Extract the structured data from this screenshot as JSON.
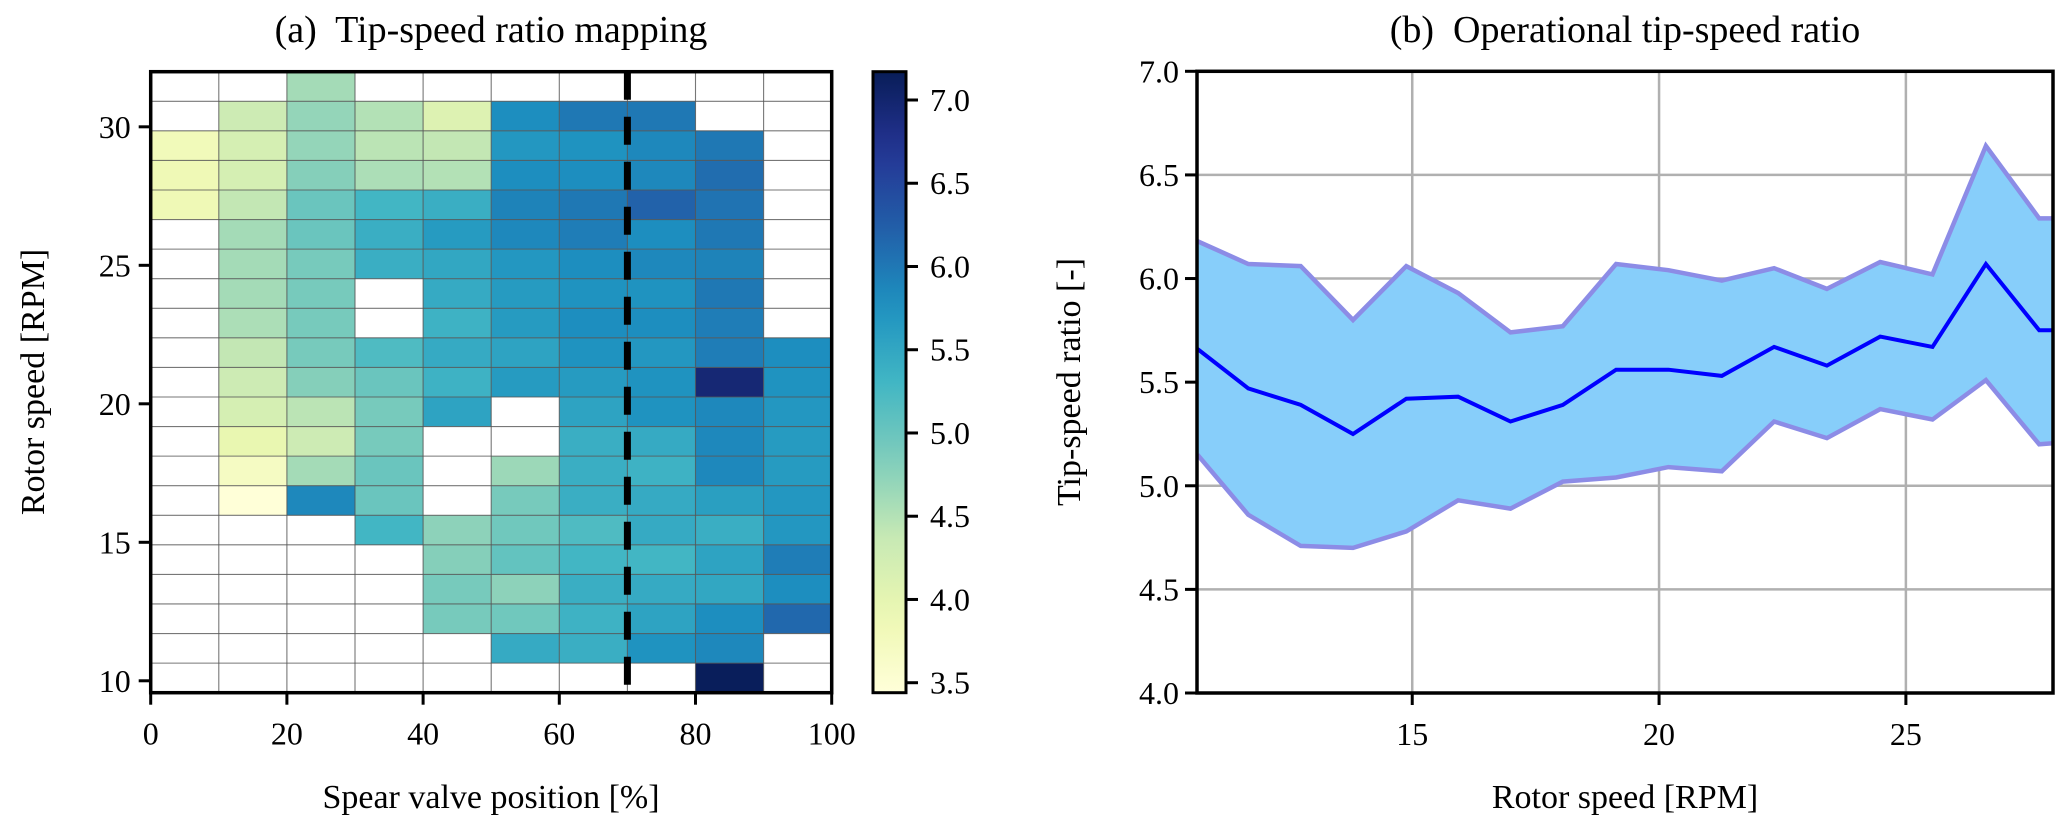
{
  "chart_data": [
    {
      "type": "heatmap",
      "title": "(a)  Tip-speed ratio mapping",
      "xlabel": "Spear valve position [%]",
      "ylabel": "Rotor speed [RPM]",
      "xlim": [
        0,
        100
      ],
      "ylim": [
        9.57,
        31.99
      ],
      "xticks": [
        0,
        20,
        40,
        60,
        80,
        100
      ],
      "yticks": [
        10,
        15,
        20,
        25,
        30
      ],
      "x_bin_edges": [
        0,
        10,
        20,
        30,
        40,
        50,
        60,
        70,
        80,
        90,
        100
      ],
      "y_bins": {
        "start": 9.57,
        "width": 1.0676,
        "count": 21
      },
      "colormap": "YlGnBu",
      "colorbar": {
        "range": [
          3.44,
          7.17
        ],
        "ticks": [
          3.5,
          4.0,
          4.5,
          5.0,
          5.5,
          6.0,
          6.5,
          7.0
        ],
        "tick_labels": [
          "3.5",
          "4.0",
          "4.5",
          "5.0",
          "5.5",
          "6.0",
          "6.5",
          "7.0"
        ]
      },
      "reference_line": {
        "x": 70,
        "style": "dashed",
        "color": "#000000"
      },
      "grid": true,
      "rows_top_to_bottom": [
        [
          null,
          null,
          4.6,
          null,
          null,
          null,
          null,
          null,
          null,
          null
        ],
        [
          null,
          4.3,
          4.7,
          4.5,
          4.1,
          5.8,
          6.0,
          6.0,
          null,
          null
        ],
        [
          3.8,
          4.2,
          4.7,
          4.45,
          4.4,
          5.7,
          5.75,
          5.85,
          6.0,
          null
        ],
        [
          3.85,
          4.2,
          4.8,
          4.55,
          4.5,
          5.8,
          5.8,
          5.85,
          6.1,
          null
        ],
        [
          3.85,
          4.4,
          5.0,
          5.3,
          5.4,
          5.9,
          6.0,
          6.2,
          6.05,
          null
        ],
        [
          null,
          4.6,
          5.0,
          5.4,
          5.65,
          5.85,
          5.95,
          5.8,
          6.0,
          null
        ],
        [
          null,
          4.6,
          4.9,
          5.4,
          5.5,
          5.7,
          5.8,
          5.85,
          5.9,
          null
        ],
        [
          null,
          4.6,
          4.9,
          null,
          5.45,
          5.65,
          5.75,
          5.75,
          6.0,
          null
        ],
        [
          null,
          4.55,
          4.9,
          null,
          5.35,
          5.65,
          5.8,
          5.8,
          5.95,
          null
        ],
        [
          null,
          4.4,
          4.9,
          5.2,
          5.45,
          5.55,
          5.75,
          5.7,
          5.95,
          5.8
        ],
        [
          null,
          4.3,
          4.8,
          5.0,
          5.35,
          5.65,
          5.65,
          5.75,
          6.95,
          5.75
        ],
        [
          null,
          4.2,
          4.45,
          4.9,
          5.55,
          null,
          5.55,
          5.75,
          5.85,
          5.7
        ],
        [
          null,
          3.95,
          4.3,
          4.9,
          null,
          null,
          5.4,
          5.45,
          5.85,
          5.65
        ],
        [
          null,
          3.7,
          4.6,
          5.0,
          null,
          4.65,
          5.4,
          5.35,
          5.85,
          5.65
        ],
        [
          null,
          3.45,
          5.85,
          5.0,
          null,
          4.9,
          5.4,
          5.45,
          5.6,
          5.7
        ],
        [
          null,
          null,
          null,
          5.3,
          4.75,
          4.95,
          5.2,
          5.45,
          5.4,
          5.7
        ],
        [
          null,
          null,
          null,
          null,
          4.8,
          5.05,
          5.3,
          5.3,
          5.55,
          5.95
        ],
        [
          null,
          null,
          null,
          null,
          4.9,
          4.75,
          5.4,
          5.45,
          5.5,
          5.8
        ],
        [
          null,
          null,
          null,
          null,
          4.9,
          4.95,
          5.35,
          5.55,
          5.8,
          6.15
        ],
        [
          null,
          null,
          null,
          null,
          null,
          5.45,
          5.4,
          5.75,
          5.85,
          null
        ],
        [
          null,
          null,
          null,
          null,
          null,
          null,
          null,
          null,
          7.15,
          null
        ]
      ]
    },
    {
      "type": "line",
      "title": "(b)  Operational tip-speed ratio",
      "xlabel": "Rotor speed [RPM]",
      "ylabel": "Tip-speed ratio [-]",
      "xlim": [
        10.64,
        27.98
      ],
      "ylim": [
        4.0,
        7.0
      ],
      "xticks": [
        15,
        20,
        25
      ],
      "yticks": [
        4.0,
        4.5,
        5.0,
        5.5,
        6.0,
        6.5,
        7.0
      ],
      "ytick_labels": [
        "4.0",
        "4.5",
        "5.0",
        "5.5",
        "6.0",
        "6.5",
        "7.0"
      ],
      "grid": true,
      "x": [
        10.65,
        11.68,
        12.74,
        13.8,
        14.88,
        15.93,
        16.99,
        18.05,
        19.13,
        20.19,
        21.27,
        22.33,
        23.4,
        24.48,
        25.54,
        26.62,
        27.7,
        28.76
      ],
      "series": [
        {
          "name": "mean",
          "color": "#0000ff",
          "values": [
            5.66,
            5.47,
            5.39,
            5.25,
            5.42,
            5.43,
            5.31,
            5.39,
            5.56,
            5.56,
            5.53,
            5.67,
            5.58,
            5.72,
            5.67,
            6.07,
            5.75,
            5.75
          ]
        },
        {
          "name": "upper",
          "color": "#8c8ce6",
          "values": [
            6.18,
            6.07,
            6.06,
            5.8,
            6.06,
            5.93,
            5.74,
            5.77,
            6.07,
            6.04,
            5.99,
            6.05,
            5.95,
            6.08,
            6.02,
            6.64,
            6.29,
            6.29
          ]
        },
        {
          "name": "lower",
          "color": "#8c8ce6",
          "values": [
            5.15,
            4.86,
            4.71,
            4.7,
            4.78,
            4.93,
            4.89,
            5.02,
            5.04,
            5.09,
            5.07,
            5.31,
            5.23,
            5.37,
            5.32,
            5.51,
            5.2,
            5.22
          ]
        }
      ],
      "band_fill": "#87cefa"
    }
  ]
}
